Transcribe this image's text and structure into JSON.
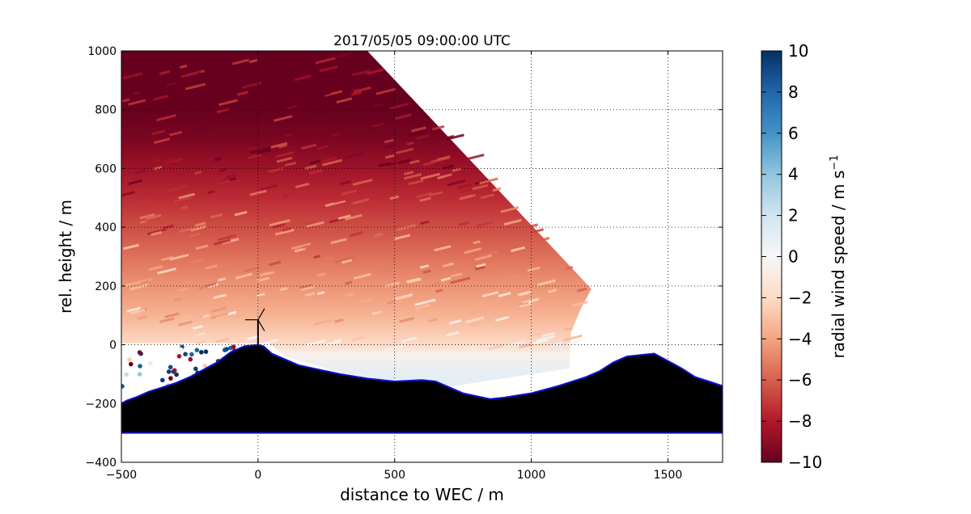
{
  "chart_data": {
    "type": "heatmap",
    "title": "2017/05/05 09:00:00 UTC",
    "xlabel": "distance to WEC / m",
    "ylabel": "rel. height / m",
    "xlim": [
      -500,
      1700
    ],
    "ylim": [
      -400,
      1000
    ],
    "xticks": [
      -500,
      0,
      500,
      1000,
      1500
    ],
    "yticks": [
      -400,
      -200,
      0,
      200,
      400,
      600,
      800,
      1000
    ],
    "xtick_labels": [
      "−500",
      "0",
      "500",
      "1000",
      "1500"
    ],
    "ytick_labels": [
      "−400",
      "−200",
      "0",
      "200",
      "400",
      "600",
      "800",
      "1000"
    ],
    "grid": true,
    "colorbar": {
      "label": "radial wind speed / m s",
      "label_superscript": "−1",
      "range": [
        -10,
        10
      ],
      "ticks": [
        -10,
        -8,
        -6,
        -4,
        -2,
        0,
        2,
        4,
        6,
        8,
        10
      ],
      "tick_labels": [
        "−10",
        "−8",
        "−6",
        "−4",
        "−2",
        "0",
        "2",
        "4",
        "6",
        "8",
        "10"
      ],
      "colormap": "RdBu",
      "colors": [
        "#67001f",
        "#b2182b",
        "#d6604d",
        "#f4a582",
        "#fddbc7",
        "#f7f7f7",
        "#d1e5f0",
        "#92c5de",
        "#4393c3",
        "#2166ac",
        "#053061"
      ]
    },
    "scan": {
      "wind_by_height": [
        {
          "height": -100,
          "value": 1.0
        },
        {
          "height": -30,
          "value": -0.5
        },
        {
          "height": 0,
          "value": -2.0
        },
        {
          "height": 100,
          "value": -3.5
        },
        {
          "height": 200,
          "value": -4.5
        },
        {
          "height": 300,
          "value": -5.5
        },
        {
          "height": 400,
          "value": -6.5
        },
        {
          "height": 500,
          "value": -7.5
        },
        {
          "height": 600,
          "value": -8.5
        },
        {
          "height": 700,
          "value": -9.5
        },
        {
          "height": 800,
          "value": -10.0
        }
      ]
    },
    "terrain": {
      "x": [
        -500,
        -480,
        -450,
        -400,
        -350,
        -300,
        -250,
        -200,
        -150,
        -100,
        -50,
        0,
        20,
        50,
        100,
        150,
        200,
        300,
        400,
        500,
        600,
        650,
        700,
        750,
        800,
        850,
        900,
        1000,
        1100,
        1200,
        1250,
        1300,
        1350,
        1400,
        1450,
        1500,
        1550,
        1600,
        1650,
        1700
      ],
      "y": [
        -200,
        -190,
        -180,
        -160,
        -145,
        -130,
        -110,
        -85,
        -60,
        -25,
        -5,
        0,
        -5,
        -30,
        -50,
        -70,
        -80,
        -100,
        -115,
        -125,
        -120,
        -125,
        -145,
        -165,
        -175,
        -185,
        -180,
        -165,
        -140,
        -110,
        -90,
        -60,
        -40,
        -35,
        -30,
        -55,
        -80,
        -110,
        -125,
        -140
      ],
      "floor": -300
    },
    "turbine": {
      "x": 0,
      "hub_height": 85
    }
  }
}
